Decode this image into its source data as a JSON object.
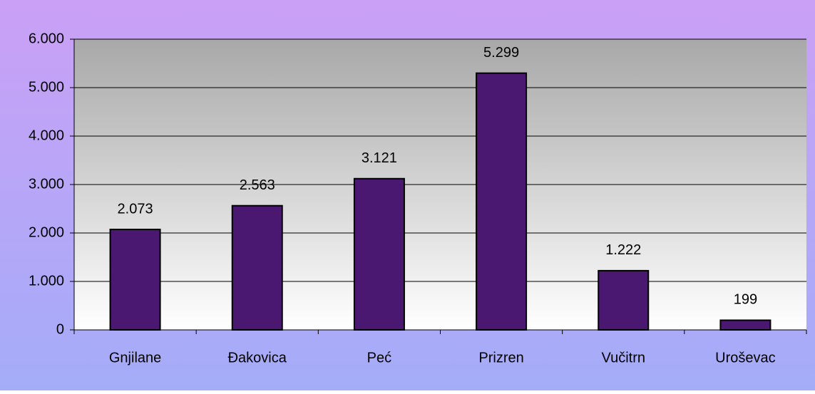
{
  "chart_data": {
    "type": "bar",
    "categories": [
      "Gnjilane",
      "Đakovica",
      "Peć",
      "Prizren",
      "Vučitrn",
      "Uroševac"
    ],
    "values": [
      2073,
      2563,
      3121,
      5299,
      1222,
      199
    ],
    "value_labels": [
      "2.073",
      "2.563",
      "3.121",
      "5.299",
      "1.222",
      "199"
    ],
    "color": "#4a1870",
    "ylim": [
      0,
      6000
    ],
    "yticks": [
      0,
      {
        "value": 1000,
        "label": "1.000"
      },
      {
        "value": 2000,
        "label": "2.000"
      },
      {
        "value": 3000,
        "label": "3.000"
      },
      {
        "value": 4000,
        "label": "4.000"
      },
      {
        "value": 5000,
        "label": "5.000"
      },
      {
        "value": 6000,
        "label": "6.000"
      }
    ],
    "grid": true
  }
}
